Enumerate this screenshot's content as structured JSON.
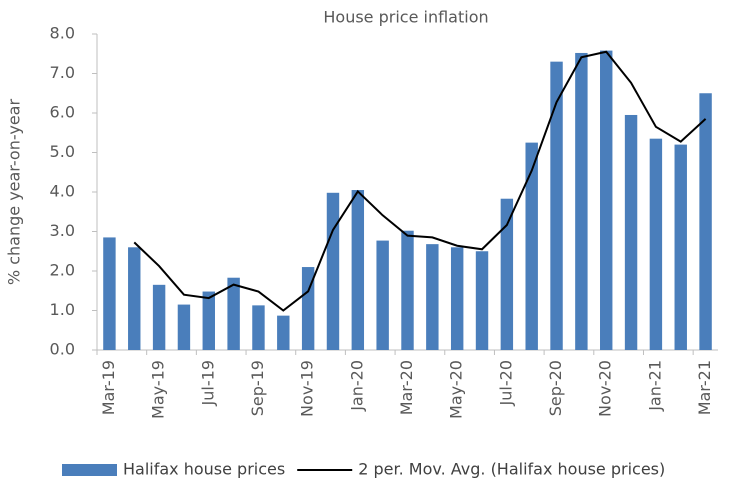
{
  "chart_data": {
    "type": "bar",
    "title": "House price inflation",
    "y_label": "% change year-on-year",
    "categories": [
      "Mar-19",
      null,
      "May-19",
      null,
      "Jul-19",
      null,
      "Sep-19",
      null,
      "Nov-19",
      null,
      "Jan-20",
      null,
      "Mar-20",
      null,
      "May-20",
      null,
      "Jul-20",
      null,
      "Sep-20",
      null,
      "Nov-20",
      null,
      "Jan-21",
      null,
      "Mar-21"
    ],
    "series": [
      {
        "name": "Halifax house prices",
        "type": "bar",
        "color": "#4a7ebb",
        "values": [
          2.85,
          2.6,
          1.65,
          1.15,
          1.48,
          1.83,
          1.13,
          0.87,
          2.1,
          3.98,
          4.05,
          2.77,
          3.02,
          2.68,
          2.6,
          2.5,
          3.83,
          5.25,
          7.3,
          7.52,
          7.58,
          5.95,
          5.35,
          5.2,
          6.5
        ]
      },
      {
        "name": "2 per. Mov. Avg. (Halifax house prices)",
        "type": "line",
        "color": "#000000",
        "values": [
          null,
          2.725,
          2.125,
          1.4,
          1.315,
          1.655,
          1.48,
          1.0,
          1.485,
          3.04,
          4.015,
          3.41,
          2.895,
          2.85,
          2.64,
          2.55,
          3.165,
          4.54,
          6.275,
          7.41,
          7.55,
          6.765,
          5.65,
          5.275,
          5.85
        ]
      }
    ],
    "ylim": [
      0,
      8
    ],
    "yticks": [
      {
        "value": 0,
        "label": "0.0"
      },
      {
        "value": 1,
        "label": "1.0"
      },
      {
        "value": 2,
        "label": "2.0"
      },
      {
        "value": 3,
        "label": "3.0"
      },
      {
        "value": 4,
        "label": "4.0"
      },
      {
        "value": 5,
        "label": "5.0"
      },
      {
        "value": 6,
        "label": "6.0"
      },
      {
        "value": 7,
        "label": "7.0"
      },
      {
        "value": 8,
        "label": "8.0"
      }
    ],
    "grid": false,
    "legend": "bottom"
  }
}
